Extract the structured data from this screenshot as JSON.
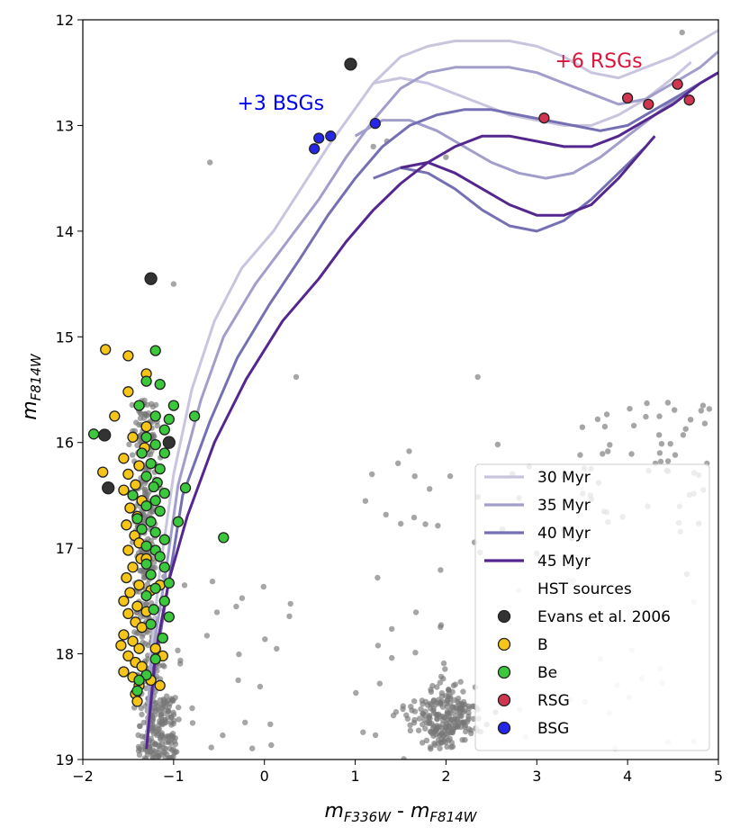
{
  "chart_data": {
    "type": "scatter",
    "xlabel_main": "m",
    "xlabel_sub1": "F336W",
    "xlabel_sep": " - ",
    "xlabel_main2": "m",
    "xlabel_sub2": "F814W",
    "ylabel_main": "m",
    "ylabel_sub": "F814W",
    "xlim": [
      -2,
      5
    ],
    "ylim": [
      19,
      12
    ],
    "x_ticks": [
      -2,
      -1,
      0,
      1,
      2,
      3,
      4,
      5
    ],
    "y_ticks": [
      12,
      13,
      14,
      15,
      16,
      17,
      18,
      19
    ],
    "annotations": [
      {
        "text": "+3 BSGs",
        "x": -0.3,
        "y": 12.85,
        "color": "#0000ee"
      },
      {
        "text": "+6 RSGs",
        "x": 3.2,
        "y": 12.45,
        "color": "#dc143c"
      }
    ],
    "isochrones": [
      {
        "name": "30 Myr",
        "color": "#c9c5df",
        "x": [
          -1.3,
          -1.25,
          -1.15,
          -1.0,
          -0.8,
          -0.55,
          -0.25,
          0.1,
          0.4,
          0.7,
          0.95,
          1.2,
          1.5,
          1.8,
          2.1,
          2.4,
          2.7,
          3.0,
          3.3,
          3.6,
          3.9,
          4.2,
          4.5,
          4.8,
          5.0
        ],
        "y": [
          18.9,
          18.0,
          17.2,
          16.3,
          15.5,
          14.85,
          14.35,
          14.0,
          13.6,
          13.2,
          12.9,
          12.6,
          12.35,
          12.25,
          12.2,
          12.2,
          12.2,
          12.25,
          12.35,
          12.5,
          12.55,
          12.45,
          12.35,
          12.2,
          12.1
        ],
        "branch": {
          "x": [
            1.2,
            1.5,
            1.8,
            2.1,
            2.4,
            2.7,
            3.0,
            3.3,
            3.6,
            3.9,
            4.2,
            4.5,
            4.7
          ],
          "y": [
            12.6,
            12.55,
            12.6,
            12.7,
            12.8,
            12.9,
            12.95,
            13.0,
            13.0,
            12.9,
            12.75,
            12.55,
            12.4
          ]
        }
      },
      {
        "name": "35 Myr",
        "color": "#a29ecb",
        "x": [
          -1.3,
          -1.25,
          -1.1,
          -0.95,
          -0.7,
          -0.45,
          -0.1,
          0.25,
          0.6,
          0.9,
          1.2,
          1.5,
          1.8,
          2.1,
          2.4,
          2.7,
          3.0,
          3.3,
          3.6,
          3.9,
          4.2,
          4.5,
          4.8,
          5.0
        ],
        "y": [
          18.9,
          18.1,
          17.3,
          16.4,
          15.6,
          15.0,
          14.5,
          14.1,
          13.7,
          13.3,
          12.95,
          12.65,
          12.5,
          12.45,
          12.45,
          12.45,
          12.5,
          12.6,
          12.7,
          12.8,
          12.75,
          12.6,
          12.45,
          12.3
        ],
        "branch": {
          "x": [
            1.0,
            1.3,
            1.6,
            1.9,
            2.2,
            2.5,
            2.8,
            3.1,
            3.4,
            3.7,
            4.0,
            4.3,
            4.6
          ],
          "y": [
            13.1,
            12.95,
            12.95,
            13.05,
            13.2,
            13.35,
            13.45,
            13.5,
            13.45,
            13.3,
            13.1,
            12.9,
            12.7
          ]
        }
      },
      {
        "name": "40 Myr",
        "color": "#7570b3",
        "x": [
          -1.3,
          -1.2,
          -1.05,
          -0.9,
          -0.6,
          -0.3,
          0.05,
          0.4,
          0.7,
          1.0,
          1.3,
          1.6,
          1.9,
          2.2,
          2.5,
          2.8,
          3.1,
          3.4,
          3.7,
          4.0,
          4.3,
          4.6,
          4.9,
          5.0
        ],
        "y": [
          18.9,
          18.1,
          17.3,
          16.5,
          15.8,
          15.2,
          14.7,
          14.25,
          13.85,
          13.5,
          13.2,
          13.0,
          12.9,
          12.85,
          12.85,
          12.9,
          12.95,
          13.0,
          13.05,
          13.0,
          12.85,
          12.7,
          12.55,
          12.5
        ],
        "branch": {
          "x": [
            1.2,
            1.5,
            1.8,
            2.1,
            2.4,
            2.7,
            3.0,
            3.3,
            3.6,
            3.9,
            4.2
          ],
          "y": [
            13.5,
            13.4,
            13.45,
            13.6,
            13.8,
            13.95,
            14.0,
            13.9,
            13.7,
            13.45,
            13.2
          ]
        }
      },
      {
        "name": "45 Myr",
        "color": "#54278f",
        "x": [
          -1.3,
          -1.2,
          -1.05,
          -0.85,
          -0.55,
          -0.2,
          0.2,
          0.6,
          0.9,
          1.2,
          1.5,
          1.8,
          2.1,
          2.4,
          2.7,
          3.0,
          3.3,
          3.6,
          3.9,
          4.2,
          4.5,
          4.8,
          5.0
        ],
        "y": [
          18.9,
          18.0,
          17.3,
          16.7,
          16.0,
          15.4,
          14.85,
          14.45,
          14.1,
          13.8,
          13.55,
          13.35,
          13.2,
          13.1,
          13.1,
          13.15,
          13.2,
          13.2,
          13.1,
          12.95,
          12.8,
          12.6,
          12.5
        ],
        "branch": {
          "x": [
            1.5,
            1.8,
            2.1,
            2.4,
            2.7,
            3.0,
            3.3,
            3.6,
            3.9,
            4.1,
            4.3
          ],
          "y": [
            13.4,
            13.35,
            13.45,
            13.6,
            13.75,
            13.85,
            13.85,
            13.75,
            13.5,
            13.3,
            13.1
          ]
        }
      }
    ],
    "hst_sources": {
      "name": "HST sources",
      "color": "#777777"
    },
    "evans": {
      "name": "Evans et al. 2006",
      "color": "#333333",
      "points": [
        [
          0.95,
          12.42
        ],
        [
          -1.25,
          14.45
        ],
        [
          -1.76,
          15.93
        ],
        [
          -1.72,
          16.43
        ],
        [
          -1.05,
          16.0
        ]
      ]
    },
    "B": {
      "name": "B",
      "color": "#f5c518",
      "points": [
        [
          -1.75,
          15.12
        ],
        [
          -1.5,
          15.18
        ],
        [
          -1.3,
          15.35
        ],
        [
          -1.5,
          15.52
        ],
        [
          -1.65,
          15.75
        ],
        [
          -1.78,
          16.28
        ],
        [
          -1.3,
          15.85
        ],
        [
          -1.45,
          15.95
        ],
        [
          -1.32,
          16.05
        ],
        [
          -1.55,
          16.15
        ],
        [
          -1.38,
          16.22
        ],
        [
          -1.5,
          16.3
        ],
        [
          -1.42,
          16.4
        ],
        [
          -1.55,
          16.45
        ],
        [
          -1.35,
          16.55
        ],
        [
          -1.48,
          16.62
        ],
        [
          -1.4,
          16.7
        ],
        [
          -1.52,
          16.78
        ],
        [
          -1.43,
          16.88
        ],
        [
          -1.38,
          16.95
        ],
        [
          -1.5,
          17.02
        ],
        [
          -1.36,
          17.1
        ],
        [
          -1.45,
          17.18
        ],
        [
          -1.52,
          17.28
        ],
        [
          -1.38,
          17.35
        ],
        [
          -1.48,
          17.42
        ],
        [
          -1.55,
          17.5
        ],
        [
          -1.4,
          17.55
        ],
        [
          -1.5,
          17.62
        ],
        [
          -1.42,
          17.7
        ],
        [
          -1.35,
          17.75
        ],
        [
          -1.55,
          17.82
        ],
        [
          -1.45,
          17.88
        ],
        [
          -1.38,
          17.95
        ],
        [
          -1.58,
          17.92
        ],
        [
          -1.5,
          18.02
        ],
        [
          -1.42,
          18.08
        ],
        [
          -1.35,
          18.12
        ],
        [
          -1.55,
          18.17
        ],
        [
          -1.45,
          18.22
        ],
        [
          -1.38,
          18.3
        ],
        [
          -1.42,
          18.38
        ],
        [
          -1.4,
          18.45
        ],
        [
          -1.2,
          17.95
        ],
        [
          -1.12,
          18.02
        ],
        [
          -1.25,
          18.25
        ],
        [
          -1.15,
          18.3
        ],
        [
          -1.3,
          17.6
        ],
        [
          -1.25,
          17.4
        ],
        [
          -1.3,
          17.1
        ],
        [
          -1.15,
          17.35
        ]
      ]
    },
    "Be": {
      "name": "Be",
      "color": "#3cc83c",
      "points": [
        [
          -1.88,
          15.92
        ],
        [
          -1.2,
          15.13
        ],
        [
          -1.15,
          15.45
        ],
        [
          -1.3,
          15.42
        ],
        [
          -1.38,
          15.65
        ],
        [
          -1.0,
          15.65
        ],
        [
          -0.77,
          15.75
        ],
        [
          -1.2,
          15.75
        ],
        [
          -1.05,
          15.78
        ],
        [
          -1.3,
          15.95
        ],
        [
          -1.1,
          15.88
        ],
        [
          -1.2,
          16.02
        ],
        [
          -1.35,
          16.1
        ],
        [
          -1.1,
          16.1
        ],
        [
          -1.25,
          16.2
        ],
        [
          -1.15,
          16.25
        ],
        [
          -1.3,
          16.32
        ],
        [
          -1.18,
          16.38
        ],
        [
          -0.87,
          16.43
        ],
        [
          -1.22,
          16.42
        ],
        [
          -1.1,
          16.48
        ],
        [
          -1.45,
          16.5
        ],
        [
          -1.2,
          16.55
        ],
        [
          -1.3,
          16.6
        ],
        [
          -1.15,
          16.65
        ],
        [
          -1.4,
          16.72
        ],
        [
          -1.25,
          16.75
        ],
        [
          -0.95,
          16.75
        ],
        [
          -1.35,
          16.82
        ],
        [
          -1.2,
          16.85
        ],
        [
          -1.1,
          16.92
        ],
        [
          -0.45,
          16.9
        ],
        [
          -1.3,
          16.98
        ],
        [
          -1.2,
          17.02
        ],
        [
          -1.15,
          17.08
        ],
        [
          -1.3,
          17.15
        ],
        [
          -1.1,
          17.18
        ],
        [
          -1.25,
          17.25
        ],
        [
          -1.05,
          17.33
        ],
        [
          -1.2,
          17.38
        ],
        [
          -1.3,
          17.45
        ],
        [
          -1.1,
          17.5
        ],
        [
          -1.22,
          17.58
        ],
        [
          -1.05,
          17.65
        ],
        [
          -1.25,
          17.72
        ],
        [
          -1.12,
          17.85
        ],
        [
          -1.2,
          18.05
        ],
        [
          -1.3,
          18.2
        ],
        [
          -1.38,
          18.25
        ],
        [
          -1.4,
          18.35
        ]
      ]
    },
    "RSG": {
      "name": "RSG",
      "color": "#d0364f",
      "points": [
        [
          3.08,
          12.93
        ],
        [
          4.0,
          12.74
        ],
        [
          4.23,
          12.8
        ],
        [
          4.55,
          12.61
        ],
        [
          4.68,
          12.76
        ]
      ]
    },
    "BSG": {
      "name": "BSG",
      "color": "#2626e8",
      "points": [
        [
          0.55,
          13.22
        ],
        [
          0.6,
          13.12
        ],
        [
          0.73,
          13.1
        ],
        [
          1.22,
          12.98
        ]
      ]
    },
    "legend": [
      "30 Myr",
      "35 Myr",
      "40 Myr",
      "45 Myr",
      "HST sources",
      "Evans et al. 2006",
      "B",
      "Be",
      "RSG",
      "BSG"
    ]
  }
}
